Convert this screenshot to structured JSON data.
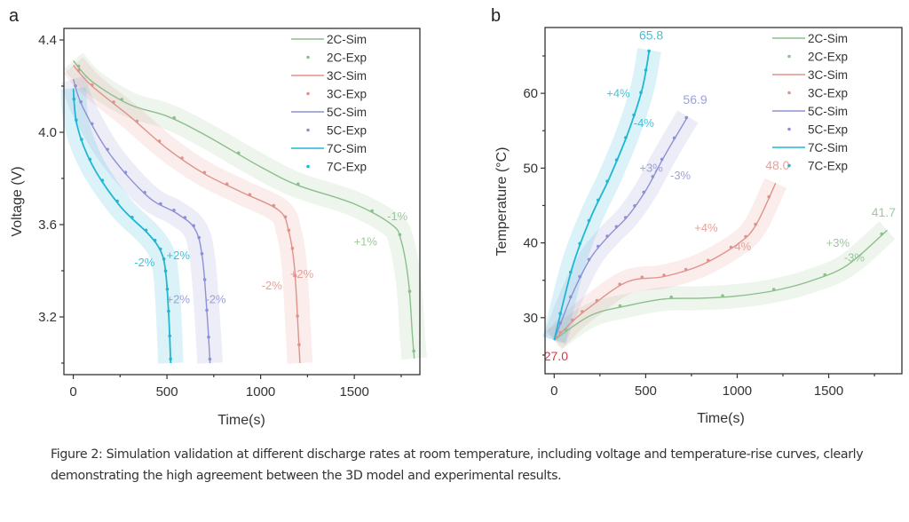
{
  "caption": "Figure 2: Simulation validation at different discharge rates at room temperature, including voltage and temperature-rise curves, clearly demonstrating the high agreement between the 3D model and experimental results.",
  "colors": {
    "2C": "#8cbf8c",
    "3C": "#e0928a",
    "5C": "#8d90d2",
    "7C": "#1fb7d2",
    "start_label": "#d83848"
  },
  "chart_data": [
    {
      "panel": "a",
      "type": "line",
      "title": "",
      "xlabel": "Time(s)",
      "ylabel": "Voltage (V)",
      "xlim": [
        -50,
        1850
      ],
      "ylim": [
        2.95,
        4.45
      ],
      "xticks": [
        0,
        500,
        1000,
        1500
      ],
      "xtick_labels": [
        "0",
        "500",
        "1000",
        "1500"
      ],
      "yticks": [
        3.2,
        3.6,
        4.0,
        4.4
      ],
      "ytick_labels": [
        "3.2",
        "3.6",
        "4.0",
        "4.4"
      ],
      "grid": false,
      "legend": "top-right",
      "legend_entries": [
        "2C-Sim",
        "2C-Exp",
        "3C-Sim",
        "3C-Exp",
        "5C-Sim",
        "5C-Exp",
        "7C-Sim",
        "7C-Exp"
      ],
      "series": [
        {
          "name": "2C",
          "x": [
            0,
            100,
            300,
            500,
            700,
            1000,
            1200,
            1500,
            1700,
            1750,
            1790,
            1810,
            1820
          ],
          "y": [
            4.31,
            4.22,
            4.12,
            4.07,
            3.99,
            3.85,
            3.77,
            3.69,
            3.6,
            3.53,
            3.35,
            3.12,
            3.02
          ]
        },
        {
          "name": "3C",
          "x": [
            0,
            100,
            300,
            500,
            700,
            900,
            1100,
            1150,
            1180,
            1200,
            1210
          ],
          "y": [
            4.29,
            4.2,
            4.07,
            3.93,
            3.82,
            3.74,
            3.66,
            3.57,
            3.42,
            3.15,
            3.0
          ]
        },
        {
          "name": "5C",
          "x": [
            0,
            50,
            200,
            400,
            550,
            650,
            690,
            715,
            730
          ],
          "y": [
            4.23,
            4.11,
            3.9,
            3.72,
            3.65,
            3.58,
            3.45,
            3.2,
            3.0
          ]
        },
        {
          "name": "7C",
          "x": [
            0,
            20,
            100,
            250,
            400,
            470,
            495,
            510,
            520
          ],
          "y": [
            4.19,
            4.03,
            3.86,
            3.68,
            3.56,
            3.48,
            3.38,
            3.2,
            3.0
          ]
        }
      ],
      "annotations": [
        {
          "series": "7C",
          "text": "-2%",
          "x": 380,
          "y": 3.42
        },
        {
          "series": "7C",
          "text": "+2%",
          "x": 560,
          "y": 3.45
        },
        {
          "series": "5C",
          "text": "+2%",
          "x": 560,
          "y": 3.26
        },
        {
          "series": "5C",
          "text": "-2%",
          "x": 760,
          "y": 3.26
        },
        {
          "series": "3C",
          "text": "-2%",
          "x": 1060,
          "y": 3.32
        },
        {
          "series": "3C",
          "text": "+2%",
          "x": 1220,
          "y": 3.37
        },
        {
          "series": "2C",
          "text": "-1%",
          "x": 1730,
          "y": 3.62
        },
        {
          "series": "2C",
          "text": "+1%",
          "x": 1560,
          "y": 3.51
        }
      ]
    },
    {
      "panel": "b",
      "type": "line",
      "title": "",
      "xlabel": "Time(s)",
      "ylabel": "Temperature (°C)",
      "xlim": [
        -50,
        1900
      ],
      "ylim": [
        22.5,
        68.8
      ],
      "xticks": [
        0,
        500,
        1000,
        1500
      ],
      "xtick_labels": [
        "0",
        "500",
        "1000",
        "1500"
      ],
      "yticks": [
        30,
        40,
        50,
        60
      ],
      "ytick_labels": [
        "30",
        "40",
        "50",
        "60"
      ],
      "grid": false,
      "legend": "top-right",
      "legend_entries": [
        "2C-Sim",
        "2C-Exp",
        "3C-Sim",
        "3C-Exp",
        "5C-Sim",
        "5C-Exp",
        "7C-Sim",
        "7C-Exp"
      ],
      "series": [
        {
          "name": "2C",
          "x": [
            0,
            200,
            400,
            600,
            800,
            1000,
            1200,
            1400,
            1600,
            1820
          ],
          "y": [
            27.0,
            30.3,
            31.6,
            32.5,
            32.6,
            32.9,
            33.6,
            34.9,
            37.0,
            41.7
          ]
        },
        {
          "name": "3C",
          "x": [
            0,
            100,
            200,
            400,
            600,
            800,
            1000,
            1100,
            1210
          ],
          "y": [
            27.0,
            29.5,
            31.5,
            34.8,
            35.5,
            37.0,
            39.8,
            42.3,
            48.0
          ]
        },
        {
          "name": "5C",
          "x": [
            0,
            100,
            200,
            300,
            400,
            500,
            600,
            730
          ],
          "y": [
            27.0,
            33.2,
            38.0,
            41.0,
            43.5,
            47.0,
            51.5,
            56.9
          ]
        },
        {
          "name": "7C",
          "x": [
            0,
            100,
            200,
            300,
            400,
            480,
            520
          ],
          "y": [
            27.0,
            36.8,
            43.4,
            48.6,
            54.5,
            60.5,
            65.8
          ]
        }
      ],
      "annotations": [
        {
          "series": "7C",
          "text": "65.8",
          "x": 530,
          "y": 67.2,
          "kind": "value"
        },
        {
          "series": "5C",
          "text": "56.9",
          "x": 770,
          "y": 58.6,
          "kind": "value"
        },
        {
          "series": "3C",
          "text": "48.0",
          "x": 1220,
          "y": 49.8,
          "kind": "value"
        },
        {
          "series": "2C",
          "text": "41.7",
          "x": 1800,
          "y": 43.5,
          "kind": "value"
        },
        {
          "series": "start",
          "text": "27.0",
          "x": 10,
          "y": 24.3,
          "kind": "value"
        },
        {
          "series": "7C",
          "text": "+4%",
          "x": 350,
          "y": 59.5
        },
        {
          "series": "7C",
          "text": "-4%",
          "x": 490,
          "y": 55.5
        },
        {
          "series": "5C",
          "text": "+3%",
          "x": 530,
          "y": 49.5
        },
        {
          "series": "5C",
          "text": "-3%",
          "x": 690,
          "y": 48.5
        },
        {
          "series": "3C",
          "text": "+4%",
          "x": 830,
          "y": 41.5
        },
        {
          "series": "3C",
          "text": "-4%",
          "x": 1020,
          "y": 39.0
        },
        {
          "series": "2C",
          "text": "+3%",
          "x": 1550,
          "y": 39.5
        },
        {
          "series": "2C",
          "text": "-3%",
          "x": 1640,
          "y": 37.5
        }
      ]
    }
  ]
}
